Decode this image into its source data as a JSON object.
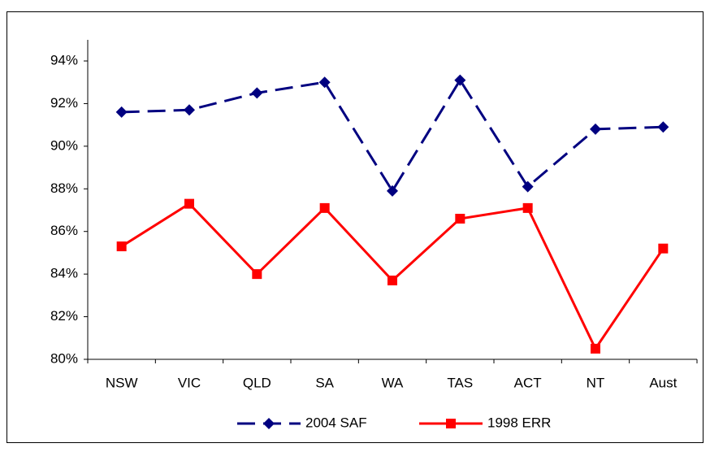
{
  "chart_data": {
    "type": "line",
    "categories": [
      "NSW",
      "VIC",
      "QLD",
      "SA",
      "WA",
      "TAS",
      "ACT",
      "NT",
      "Aust"
    ],
    "series": [
      {
        "name": "2004 SAF",
        "color": "#000080",
        "dash": true,
        "marker": "diamond",
        "values": [
          91.6,
          91.7,
          92.5,
          93.0,
          87.9,
          93.1,
          88.1,
          90.8,
          90.9
        ]
      },
      {
        "name": "1998 ERR",
        "color": "#ff0000",
        "dash": false,
        "marker": "square",
        "values": [
          85.3,
          87.3,
          84.0,
          87.1,
          83.7,
          86.6,
          87.1,
          80.5,
          85.2
        ]
      }
    ],
    "ylim": [
      80,
      94
    ],
    "yticks": [
      {
        "value": 80,
        "label": "80%"
      },
      {
        "value": 82,
        "label": "82%"
      },
      {
        "value": 84,
        "label": "84%"
      },
      {
        "value": 86,
        "label": "86%"
      },
      {
        "value": 88,
        "label": "88%"
      },
      {
        "value": 90,
        "label": "90%"
      },
      {
        "value": 92,
        "label": "92%"
      },
      {
        "value": 94,
        "label": "94%"
      }
    ],
    "grid": false,
    "legend": "bottom"
  }
}
